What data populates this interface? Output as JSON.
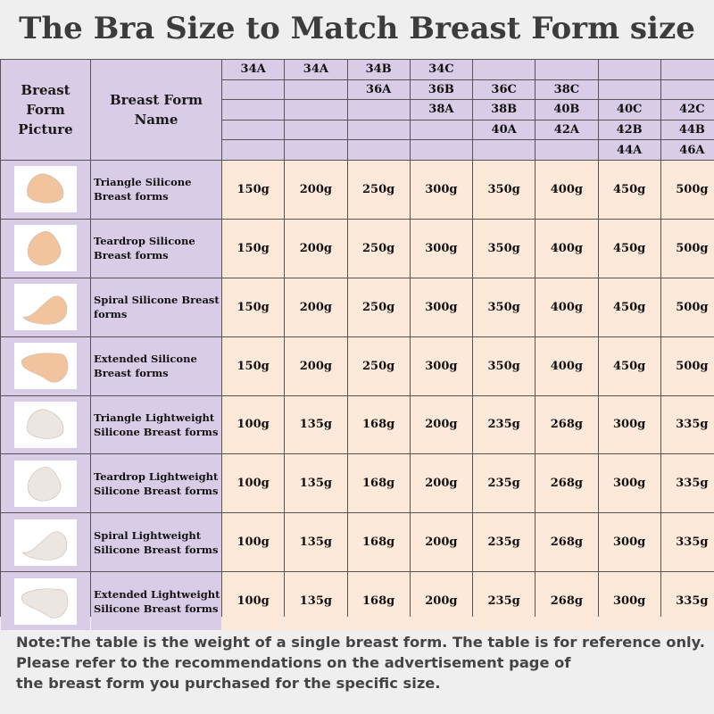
{
  "title": "The Bra Size to Match Breast Form size",
  "header": {
    "picture_label": "Breast Form Picture",
    "name_label": "Breast Form Name",
    "size_rows": [
      [
        "34A",
        "34A",
        "34B",
        "34C",
        "",
        "",
        "",
        ""
      ],
      [
        "",
        "",
        "36A",
        "36B",
        "36C",
        "38C",
        "",
        ""
      ],
      [
        "",
        "",
        "",
        "38A",
        "38B",
        "40B",
        "40C",
        "42C"
      ],
      [
        "",
        "",
        "",
        "",
        "40A",
        "42A",
        "42B",
        "44B"
      ],
      [
        "",
        "",
        "",
        "",
        "",
        "",
        "44A",
        "46A"
      ]
    ]
  },
  "rows": [
    {
      "name": "Triangle Silicone Breast forms",
      "shape": "triangle",
      "tone": "beige",
      "values": [
        "150g",
        "200g",
        "250g",
        "300g",
        "350g",
        "400g",
        "450g",
        "500g"
      ]
    },
    {
      "name": "Teardrop Silicone Breast forms",
      "shape": "teardrop",
      "tone": "beige",
      "values": [
        "150g",
        "200g",
        "250g",
        "300g",
        "350g",
        "400g",
        "450g",
        "500g"
      ]
    },
    {
      "name": "Spiral Silicone Breast forms",
      "shape": "spiral",
      "tone": "beige",
      "values": [
        "150g",
        "200g",
        "250g",
        "300g",
        "350g",
        "400g",
        "450g",
        "500g"
      ]
    },
    {
      "name": "Extended Silicone Breast forms",
      "shape": "extended",
      "tone": "beige",
      "values": [
        "150g",
        "200g",
        "250g",
        "300g",
        "350g",
        "400g",
        "450g",
        "500g"
      ]
    },
    {
      "name": "Triangle Lightweight Silicone Breast forms",
      "shape": "triangle",
      "tone": "light",
      "values": [
        "100g",
        "135g",
        "168g",
        "200g",
        "235g",
        "268g",
        "300g",
        "335g"
      ]
    },
    {
      "name": "Teardrop Lightweight Silicone Breast forms",
      "shape": "teardrop",
      "tone": "light",
      "values": [
        "100g",
        "135g",
        "168g",
        "200g",
        "235g",
        "268g",
        "300g",
        "335g"
      ]
    },
    {
      "name": "Spiral Lightweight Silicone Breast forms",
      "shape": "spiral",
      "tone": "light",
      "values": [
        "100g",
        "135g",
        "168g",
        "200g",
        "235g",
        "268g",
        "300g",
        "335g"
      ]
    },
    {
      "name": "Extended Lightweight Silicone Breast forms",
      "shape": "extended",
      "tone": "light",
      "values": [
        "100g",
        "135g",
        "168g",
        "200g",
        "235g",
        "268g",
        "300g",
        "335g"
      ]
    }
  ],
  "note": [
    "Note:The table is the weight of a single breast form. The table is for reference only.",
    "Please refer to the recommendations on the advertisement page of",
    "the breast form you purchased for the specific size."
  ],
  "colors": {
    "header_bg": "#d9cce6",
    "value_bg": "#fde9da",
    "beige": "#f2c49e",
    "light": "#ece6e2"
  }
}
